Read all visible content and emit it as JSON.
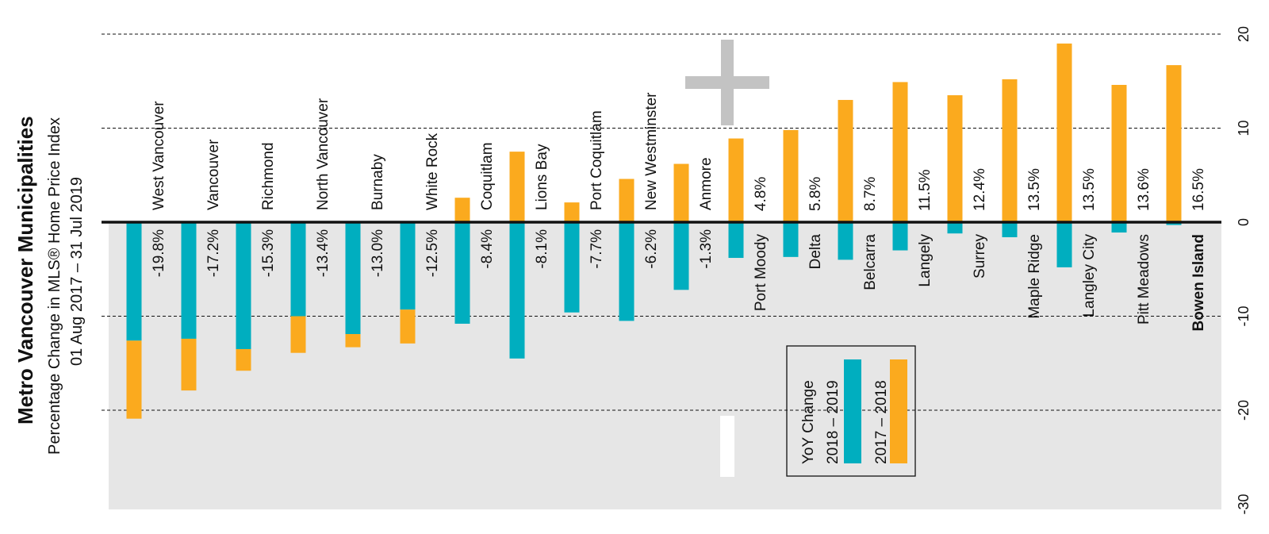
{
  "colors": {
    "yoy_2018_2019": "#00AEBF",
    "yoy_2017_2018": "#FBAA1E",
    "negative_region": "#E6E6E6",
    "plus_mark": "#C3C3C3",
    "gridline": "#111111"
  },
  "chart_data": {
    "type": "bar",
    "orientation": "rotated 90° counter-clockwise (value axis horizontal on the right edge)",
    "title": "Metro Vancouver Municipalities",
    "subtitle_line1": "Percentage Change in MLS® Home Price Index",
    "subtitle_line2": "01 Aug 2017 – 31 Jul 2019",
    "value_axis": {
      "ticks": [
        20,
        10,
        0,
        -10,
        -20,
        -30
      ],
      "ylim": [
        -30,
        20
      ],
      "unit": "%"
    },
    "grid": true,
    "categories": [
      "West Vancouver",
      "Vancouver",
      "Richmond",
      "North Vancouver",
      "Burnaby",
      "White Rock",
      "Coquitlam",
      "Lions Bay",
      "Port Coquitlam",
      "New Westminster",
      "Anmore",
      "Port Moody",
      "Delta",
      "Belcarra",
      "Langely",
      "Surrey",
      "Maple Ridge",
      "Langley City",
      "Pitt Meadows",
      "Bowen Island"
    ],
    "bold_category": "Bowen Island",
    "total_labels": [
      "-19.8%",
      "-17.2%",
      "-15.3%",
      "-13.4%",
      "-13.0%",
      "-12.5%",
      "-8.4%",
      "-8.1%",
      "-7.7%",
      "-6.2%",
      "-1.3%",
      "4.8%",
      "5.8%",
      "8.7%",
      "11.5%",
      "12.4%",
      "13.5%",
      "13.5%",
      "13.6%",
      "16.5%"
    ],
    "series": [
      {
        "name": "2018 – 2019",
        "color_key": "yoy_2018_2019",
        "values": [
          -12.6,
          -12.4,
          -13.5,
          -10.0,
          -11.9,
          -9.3,
          -10.8,
          -14.5,
          -9.6,
          -10.5,
          -7.2,
          -3.8,
          -3.7,
          -4.0,
          -3.0,
          -1.2,
          -1.6,
          -4.8,
          -1.1,
          -0.3
        ]
      },
      {
        "name": "2017 – 2018",
        "color_key": "yoy_2017_2018",
        "values": [
          -8.3,
          -5.5,
          -2.3,
          -3.9,
          -1.4,
          -3.6,
          2.6,
          7.5,
          2.1,
          4.6,
          6.2,
          8.9,
          9.8,
          13.0,
          14.9,
          13.5,
          15.2,
          19.0,
          14.6,
          16.7
        ]
      }
    ],
    "legend": {
      "title": "YoY Change",
      "placement": "bottom-center",
      "entries": [
        "2018 – 2019",
        "2017 – 2018"
      ]
    }
  }
}
